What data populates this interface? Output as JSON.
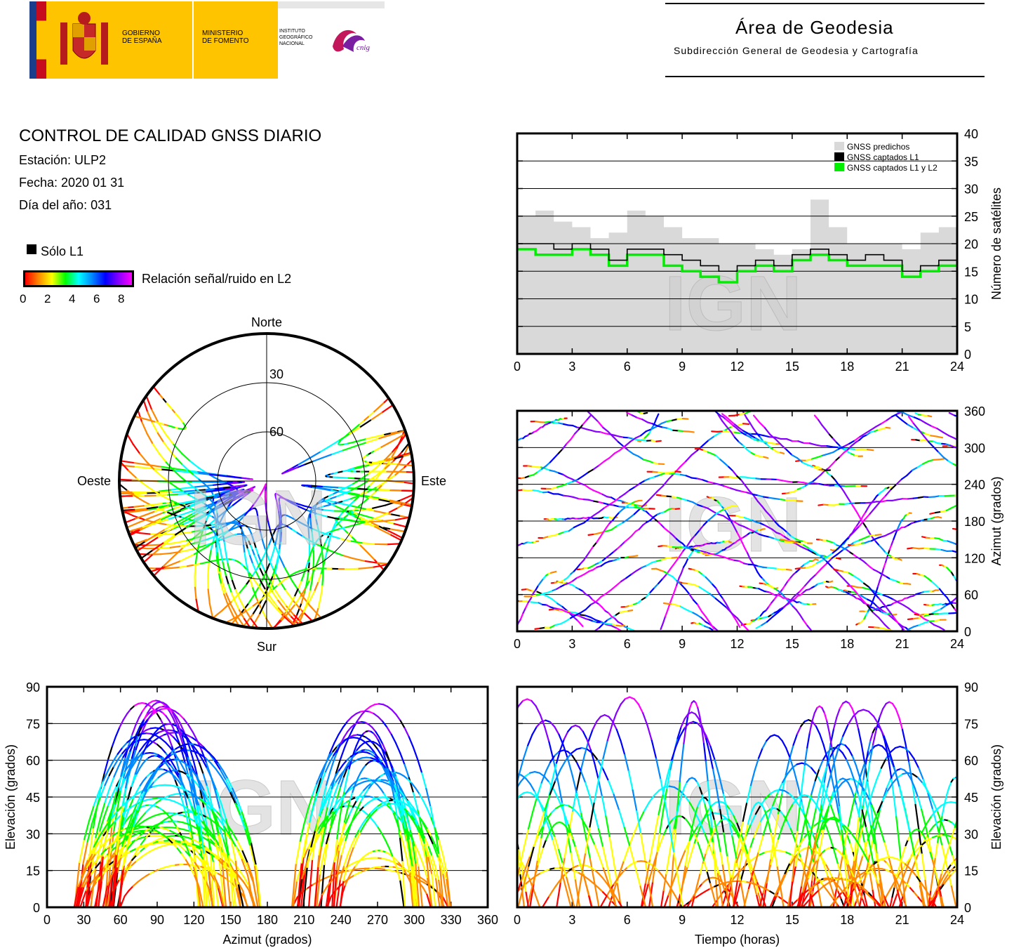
{
  "header": {
    "gov_line1": "GOBIERNO",
    "gov_line2": "DE ESPAÑA",
    "min_line1": "MINISTERIO",
    "min_line2": "DE FOMENTO",
    "ign_line1": "INSTITUTO",
    "ign_line2": "GEOGRÁFICO",
    "ign_line3": "NACIONAL",
    "cnig": "cnig",
    "area_title": "Área de Geodesia",
    "area_subtitle": "Subdirección General de Geodesia y Cartografía"
  },
  "info": {
    "title": "CONTROL DE CALIDAD GNSS DIARIO",
    "station": "Estación: ULP2",
    "date": "Fecha: 2020 01 31",
    "doy": "Día del año: 031",
    "solo_l1": "Sólo L1",
    "snr_label": "Relación señal/ruido en L2",
    "snr_ticks": [
      "0",
      "2",
      "4",
      "6",
      "8"
    ]
  },
  "colors": {
    "predicted": "#d9d9d9",
    "l1": "#000000",
    "l1l2": "#00ee00",
    "snr_scale": [
      "#ff0000",
      "#ff8800",
      "#ffff00",
      "#00ff00",
      "#00ffff",
      "#0088ff",
      "#0000ff",
      "#8800ff",
      "#ff00ff"
    ]
  },
  "watermark": "IGN",
  "chart_data": [
    {
      "type": "line",
      "id": "sat-count",
      "legend": [
        "GNSS predichos",
        "GNSS captados L1",
        "GNSS captados L1 y L2"
      ],
      "legend_position": "top-right",
      "xlabel": "",
      "ylabel": "Número de satélites",
      "xlim": [
        0,
        24
      ],
      "ylim": [
        0,
        40
      ],
      "xticks": [
        "0",
        "3",
        "6",
        "9",
        "12",
        "15",
        "18",
        "21",
        "24"
      ],
      "yticks": [
        "0",
        "5",
        "10",
        "15",
        "20",
        "25",
        "30",
        "35",
        "40"
      ],
      "grid": true,
      "x": [
        0,
        1,
        2,
        3,
        4,
        5,
        6,
        7,
        8,
        9,
        10,
        11,
        12,
        13,
        14,
        15,
        16,
        17,
        18,
        19,
        20,
        21,
        22,
        23,
        24
      ],
      "series": [
        {
          "name": "GNSS predichos",
          "values": [
            25,
            26,
            24,
            23,
            21,
            22,
            26,
            25,
            23,
            21,
            21,
            20,
            20,
            19,
            18,
            19,
            28,
            23,
            20,
            20,
            20,
            19,
            22,
            23,
            27
          ]
        },
        {
          "name": "GNSS captados L1",
          "values": [
            20,
            20,
            19,
            20,
            19,
            17,
            19,
            19,
            18,
            17,
            16,
            15,
            16,
            17,
            16,
            18,
            19,
            18,
            17,
            18,
            17,
            15,
            16,
            17,
            20
          ]
        },
        {
          "name": "GNSS captados L1 y L2",
          "values": [
            19,
            18,
            18,
            19,
            18,
            16,
            18,
            18,
            16,
            15,
            14,
            13,
            15,
            16,
            15,
            17,
            18,
            17,
            16,
            16,
            16,
            14,
            15,
            16,
            19
          ]
        }
      ]
    },
    {
      "type": "scatter",
      "id": "skyplot",
      "labels": {
        "north": "Norte",
        "south": "Sur",
        "east": "Este",
        "west": "Oeste"
      },
      "rings": [
        "30",
        "60"
      ]
    },
    {
      "type": "scatter",
      "id": "azimuth-time",
      "xlabel": "",
      "ylabel": "Azimut (grados)",
      "xlim": [
        0,
        24
      ],
      "ylim": [
        0,
        360
      ],
      "xticks": [
        "0",
        "3",
        "6",
        "9",
        "12",
        "15",
        "18",
        "21",
        "24"
      ],
      "yticks": [
        "0",
        "60",
        "120",
        "180",
        "240",
        "300",
        "360"
      ],
      "grid": true
    },
    {
      "type": "scatter",
      "id": "elevation-azimuth",
      "xlabel": "Azimut (grados)",
      "ylabel": "Elevación (grados)",
      "xlim": [
        0,
        360
      ],
      "ylim": [
        0,
        90
      ],
      "xticks": [
        "0",
        "30",
        "60",
        "90",
        "120",
        "150",
        "180",
        "210",
        "240",
        "270",
        "300",
        "330",
        "360"
      ],
      "yticks": [
        "0",
        "15",
        "30",
        "45",
        "60",
        "75",
        "90"
      ],
      "grid": true
    },
    {
      "type": "scatter",
      "id": "elevation-time",
      "xlabel": "Tiempo (horas)",
      "ylabel": "Elevación (grados)",
      "xlim": [
        0,
        24
      ],
      "ylim": [
        0,
        90
      ],
      "xticks": [
        "0",
        "3",
        "6",
        "9",
        "12",
        "15",
        "18",
        "21",
        "24"
      ],
      "yticks": [
        "0",
        "15",
        "30",
        "45",
        "60",
        "75",
        "90"
      ],
      "grid": true
    }
  ]
}
